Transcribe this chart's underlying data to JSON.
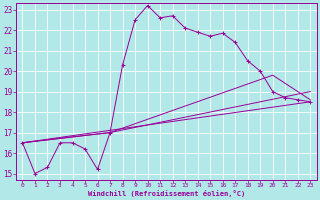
{
  "xlabel": "Windchill (Refroidissement éolien,°C)",
  "bg_color": "#b3e8e8",
  "grid_color": "#ffffff",
  "line_color": "#990099",
  "xlim": [
    -0.5,
    23.5
  ],
  "ylim": [
    14.7,
    23.3
  ],
  "yticks": [
    15,
    16,
    17,
    18,
    19,
    20,
    21,
    22,
    23
  ],
  "xticks": [
    0,
    1,
    2,
    3,
    4,
    5,
    6,
    7,
    8,
    9,
    10,
    11,
    12,
    13,
    14,
    15,
    16,
    17,
    18,
    19,
    20,
    21,
    22,
    23
  ],
  "main_x": [
    0,
    1,
    2,
    3,
    4,
    5,
    6,
    7,
    8,
    9,
    10,
    11,
    12,
    13,
    14,
    15,
    16,
    17,
    18,
    19,
    20,
    21,
    22,
    23
  ],
  "main_y": [
    16.5,
    15.0,
    15.3,
    16.5,
    16.5,
    16.2,
    15.2,
    17.0,
    20.3,
    22.5,
    23.2,
    22.6,
    22.7,
    22.1,
    21.9,
    21.7,
    21.85,
    21.4,
    20.5,
    20.0,
    19.0,
    18.7,
    18.6,
    18.5
  ],
  "line2_x": [
    0,
    23
  ],
  "line2_y": [
    16.5,
    18.5
  ],
  "line3_x": [
    0,
    7,
    20,
    23
  ],
  "line3_y": [
    16.5,
    17.0,
    19.8,
    18.6
  ],
  "line4_x": [
    0,
    7,
    23
  ],
  "line4_y": [
    16.5,
    17.0,
    19.0
  ]
}
